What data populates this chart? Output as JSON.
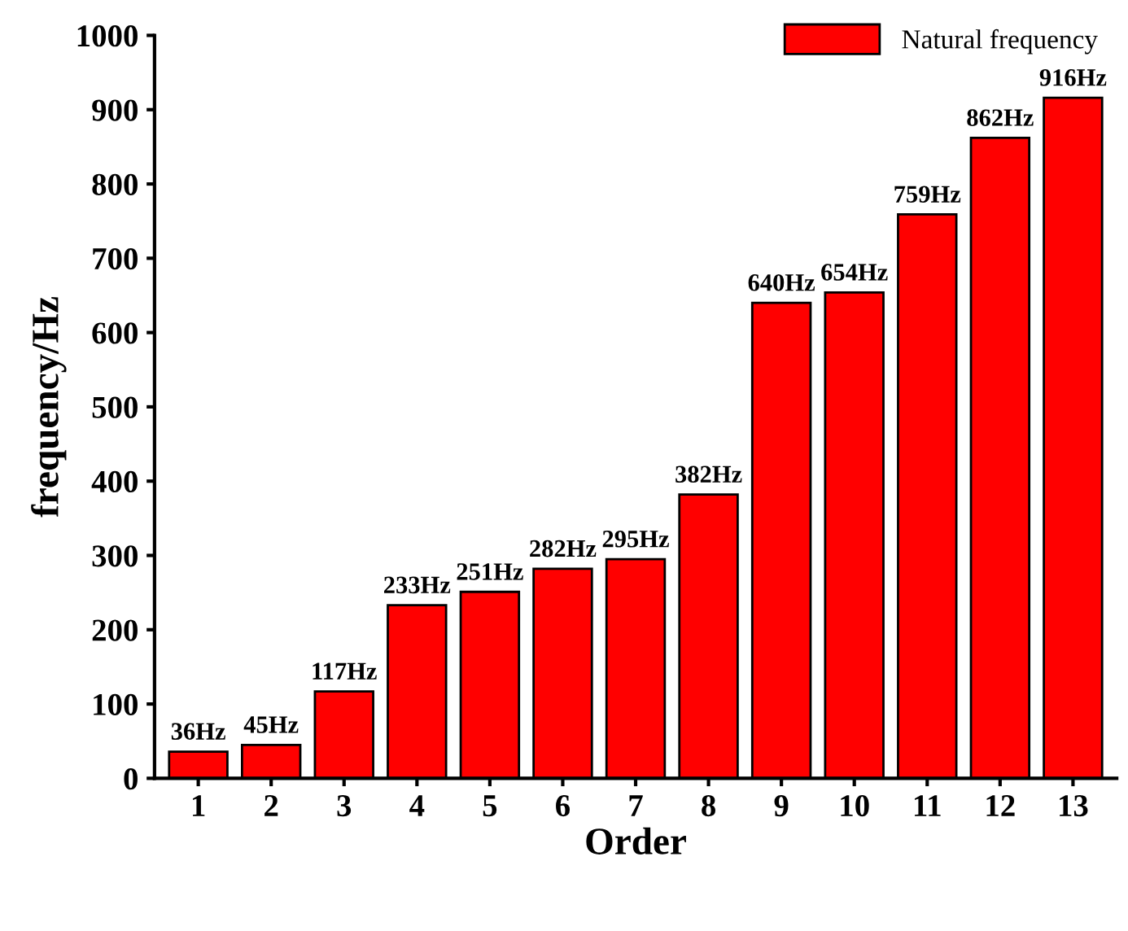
{
  "chart_data": {
    "type": "bar",
    "xlabel": "Order",
    "ylabel": "frequency/Hz",
    "categories": [
      "1",
      "2",
      "3",
      "4",
      "5",
      "6",
      "7",
      "8",
      "9",
      "10",
      "11",
      "12",
      "13"
    ],
    "series": [
      {
        "name": "Natural frequency",
        "color": "#ff0000",
        "values": [
          36,
          45,
          117,
          233,
          251,
          282,
          295,
          382,
          640,
          654,
          759,
          862,
          916
        ],
        "value_labels": [
          "36Hz",
          "45Hz",
          "117Hz",
          "233Hz",
          "251Hz",
          "282Hz",
          "295Hz",
          "382Hz",
          "640Hz",
          "654Hz",
          "759Hz",
          "862Hz",
          "916Hz"
        ]
      }
    ],
    "ylim": [
      0,
      1000
    ],
    "yticks": [
      0,
      100,
      200,
      300,
      400,
      500,
      600,
      700,
      800,
      900,
      1000
    ],
    "grid": false,
    "legend": "top right"
  }
}
